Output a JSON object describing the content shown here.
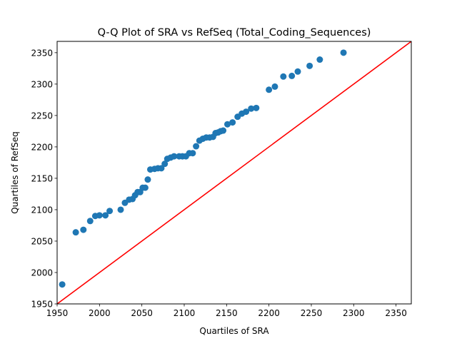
{
  "chart_data": {
    "type": "scatter",
    "title": "Q-Q Plot of SRA vs RefSeq (Total_Coding_Sequences)",
    "xlabel": "Quartiles of SRA",
    "ylabel": "Quartiles of RefSeq",
    "xlim": [
      1950,
      2368
    ],
    "ylim": [
      1950,
      2368
    ],
    "xticks": [
      1950,
      2000,
      2050,
      2100,
      2150,
      2200,
      2250,
      2300,
      2350
    ],
    "yticks": [
      1950,
      2000,
      2050,
      2100,
      2150,
      2200,
      2250,
      2300,
      2350
    ],
    "grid": false,
    "point_color": "#1f77b4",
    "reference_line": {
      "color": "#ff0000",
      "from": [
        1950,
        1950
      ],
      "to": [
        2368,
        2368
      ]
    },
    "points": [
      {
        "x": 1956,
        "y": 1981
      },
      {
        "x": 1972,
        "y": 2064
      },
      {
        "x": 1981,
        "y": 2068
      },
      {
        "x": 1989,
        "y": 2082
      },
      {
        "x": 1995,
        "y": 2090
      },
      {
        "x": 2000,
        "y": 2091
      },
      {
        "x": 2007,
        "y": 2091
      },
      {
        "x": 2012,
        "y": 2098
      },
      {
        "x": 2025,
        "y": 2100
      },
      {
        "x": 2030,
        "y": 2111
      },
      {
        "x": 2035,
        "y": 2116
      },
      {
        "x": 2039,
        "y": 2117
      },
      {
        "x": 2042,
        "y": 2123
      },
      {
        "x": 2045,
        "y": 2128
      },
      {
        "x": 2048,
        "y": 2128
      },
      {
        "x": 2051,
        "y": 2135
      },
      {
        "x": 2054,
        "y": 2135
      },
      {
        "x": 2057,
        "y": 2148
      },
      {
        "x": 2060,
        "y": 2164
      },
      {
        "x": 2065,
        "y": 2165
      },
      {
        "x": 2069,
        "y": 2166
      },
      {
        "x": 2073,
        "y": 2166
      },
      {
        "x": 2077,
        "y": 2173
      },
      {
        "x": 2080,
        "y": 2181
      },
      {
        "x": 2084,
        "y": 2183
      },
      {
        "x": 2088,
        "y": 2185
      },
      {
        "x": 2094,
        "y": 2185
      },
      {
        "x": 2098,
        "y": 2185
      },
      {
        "x": 2102,
        "y": 2185
      },
      {
        "x": 2106,
        "y": 2190
      },
      {
        "x": 2110,
        "y": 2190
      },
      {
        "x": 2114,
        "y": 2201
      },
      {
        "x": 2118,
        "y": 2210
      },
      {
        "x": 2122,
        "y": 2213
      },
      {
        "x": 2126,
        "y": 2215
      },
      {
        "x": 2130,
        "y": 2215
      },
      {
        "x": 2134,
        "y": 2216
      },
      {
        "x": 2137,
        "y": 2222
      },
      {
        "x": 2140,
        "y": 2223
      },
      {
        "x": 2143,
        "y": 2225
      },
      {
        "x": 2146,
        "y": 2226
      },
      {
        "x": 2151,
        "y": 2236
      },
      {
        "x": 2157,
        "y": 2239
      },
      {
        "x": 2163,
        "y": 2248
      },
      {
        "x": 2168,
        "y": 2253
      },
      {
        "x": 2173,
        "y": 2256
      },
      {
        "x": 2179,
        "y": 2261
      },
      {
        "x": 2185,
        "y": 2262
      },
      {
        "x": 2200,
        "y": 2291
      },
      {
        "x": 2207,
        "y": 2296
      },
      {
        "x": 2217,
        "y": 2312
      },
      {
        "x": 2227,
        "y": 2313
      },
      {
        "x": 2234,
        "y": 2320
      },
      {
        "x": 2248,
        "y": 2329
      },
      {
        "x": 2260,
        "y": 2339
      },
      {
        "x": 2288,
        "y": 2350
      }
    ]
  }
}
